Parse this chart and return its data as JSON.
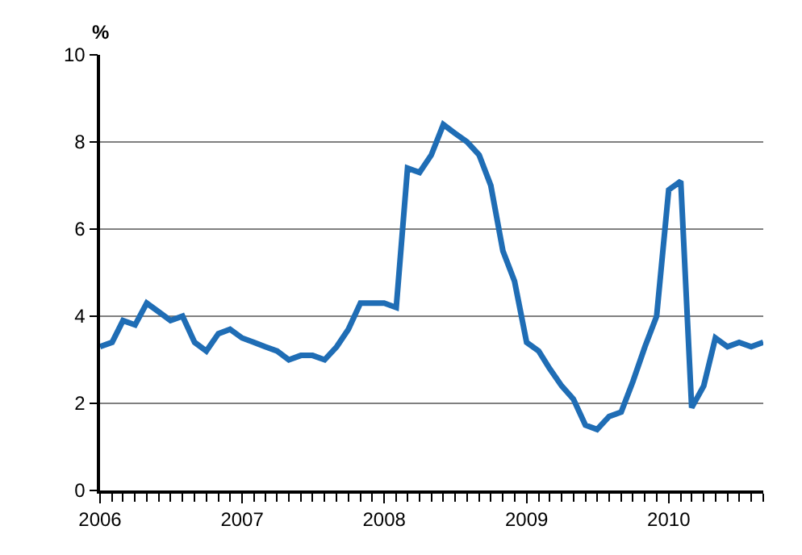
{
  "chart_data": {
    "type": "line",
    "ylabel": "%",
    "x": [
      "2006-01",
      "2006-02",
      "2006-03",
      "2006-04",
      "2006-05",
      "2006-06",
      "2006-07",
      "2006-08",
      "2006-09",
      "2006-10",
      "2006-11",
      "2006-12",
      "2007-01",
      "2007-02",
      "2007-03",
      "2007-04",
      "2007-05",
      "2007-06",
      "2007-07",
      "2007-08",
      "2007-09",
      "2007-10",
      "2007-11",
      "2007-12",
      "2008-01",
      "2008-02",
      "2008-03",
      "2008-04",
      "2008-05",
      "2008-06",
      "2008-07",
      "2008-08",
      "2008-09",
      "2008-10",
      "2008-11",
      "2008-12",
      "2009-01",
      "2009-02",
      "2009-03",
      "2009-04",
      "2009-05",
      "2009-06",
      "2009-07",
      "2009-08",
      "2009-09",
      "2009-10",
      "2009-11",
      "2009-12",
      "2010-01",
      "2010-02",
      "2010-03",
      "2010-04",
      "2010-05",
      "2010-06",
      "2010-07",
      "2010-08",
      "2010-09"
    ],
    "series": [
      {
        "color": "#1f6db5",
        "values": [
          3.3,
          3.4,
          3.9,
          3.8,
          4.3,
          4.1,
          3.9,
          4.0,
          3.4,
          3.2,
          3.6,
          3.7,
          3.5,
          3.4,
          3.3,
          3.2,
          3.0,
          3.1,
          3.1,
          3.0,
          3.3,
          3.7,
          4.3,
          4.3,
          4.3,
          4.2,
          7.4,
          7.3,
          7.7,
          8.4,
          8.2,
          8.0,
          7.7,
          7.0,
          5.5,
          4.8,
          3.4,
          3.2,
          2.8,
          2.4,
          2.1,
          1.5,
          1.4,
          1.7,
          1.8,
          2.5,
          3.3,
          4.0,
          6.9,
          7.1,
          1.9,
          2.4,
          3.5,
          3.3,
          3.4,
          3.3,
          3.4
        ]
      }
    ],
    "xlim": [
      "2006-01",
      "2010-09"
    ],
    "xticks": [
      {
        "value": "2006-01",
        "label": "2006"
      },
      {
        "value": "2007-01",
        "label": "2007"
      },
      {
        "value": "2008-01",
        "label": "2008"
      },
      {
        "value": "2009-01",
        "label": "2009"
      },
      {
        "value": "2010-01",
        "label": "2010"
      }
    ],
    "ylim": [
      0,
      10
    ],
    "yticks": [
      0,
      2,
      4,
      6,
      8,
      10
    ],
    "grid": "y",
    "legend": false,
    "marker": "none",
    "line_style": "solid"
  }
}
